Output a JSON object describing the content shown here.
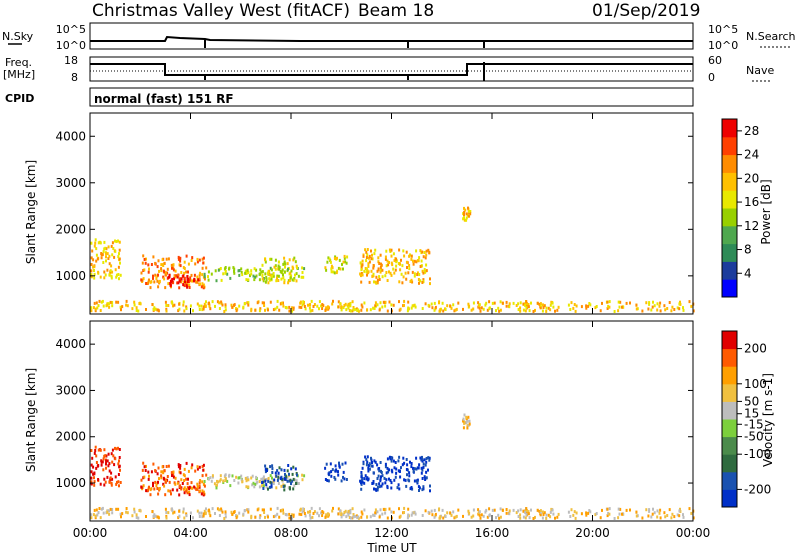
{
  "header": {
    "title": "Christmas Valley West (fitACF)",
    "beam": "Beam 18",
    "date": "01/Sep/2019"
  },
  "top_panels": {
    "nsky_label": "N.Sky",
    "nsky_ticks": [
      "10^5",
      "10^0"
    ],
    "nsearch_label": "N.Search",
    "nsearch_ticks": [
      "10^5",
      "10^0"
    ],
    "freq_label_line1": "Freq.",
    "freq_label_line2": "[MHz]",
    "freq_ticks": [
      "18",
      "8"
    ],
    "nave_label": "Nave",
    "nave_ticks": [
      "60",
      "0"
    ],
    "cpid_label": "CPID",
    "cpid_value": "normal (fast) 151 RF"
  },
  "colors": {
    "power": [
      "#0000ff",
      "#1c3c9c",
      "#2e8b57",
      "#4fa84f",
      "#98d000",
      "#e8e800",
      "#ffc000",
      "#ff8c00",
      "#ff4000",
      "#ee0000"
    ],
    "velocity": [
      "#0030c8",
      "#1a52b0",
      "#2f6b3f",
      "#4b8b4b",
      "#7ccf3c",
      "#bdbdbd",
      "#f0c040",
      "#ff9f00",
      "#ff5a00",
      "#e00000"
    ]
  },
  "chart_data": [
    {
      "type": "heatmap",
      "name": "power",
      "xlabel": "",
      "ylabel": "Slant Range [km]",
      "x_ticks": [
        "00:00",
        "04:00",
        "08:00",
        "12:00",
        "16:00",
        "20:00",
        "00:00"
      ],
      "y_ticks": [
        1000,
        2000,
        3000,
        4000
      ],
      "xlim_hours": [
        0,
        24
      ],
      "ylim_km": [
        180,
        4500
      ],
      "colorbar": {
        "label": "Power [dB]",
        "ticks": [
          4,
          8,
          12,
          16,
          20,
          24,
          28
        ],
        "range": [
          0,
          30
        ]
      },
      "echo_regions": [
        {
          "t0": 0.0,
          "t1": 24.0,
          "r0": 200,
          "r1": 420,
          "level": 6
        },
        {
          "t0": 0.0,
          "t1": 1.2,
          "r0": 900,
          "r1": 1750,
          "level": 6
        },
        {
          "t0": 2.0,
          "t1": 4.6,
          "r0": 700,
          "r1": 1400,
          "level": 7
        },
        {
          "t0": 3.0,
          "t1": 4.4,
          "r0": 700,
          "r1": 1000,
          "level": 9
        },
        {
          "t0": 4.5,
          "t1": 8.5,
          "r0": 850,
          "r1": 1150,
          "level": 4
        },
        {
          "t0": 6.8,
          "t1": 8.2,
          "r0": 800,
          "r1": 1350,
          "level": 5
        },
        {
          "t0": 9.3,
          "t1": 10.2,
          "r0": 1000,
          "r1": 1400,
          "level": 5
        },
        {
          "t0": 10.7,
          "t1": 13.5,
          "r0": 800,
          "r1": 1550,
          "level": 6
        },
        {
          "t0": 14.8,
          "t1": 15.1,
          "r0": 2150,
          "r1": 2450,
          "level": 6
        }
      ]
    },
    {
      "type": "heatmap",
      "name": "velocity",
      "xlabel": "Time UT",
      "ylabel": "Slant Range [km]",
      "x_ticks": [
        "00:00",
        "04:00",
        "08:00",
        "12:00",
        "16:00",
        "20:00",
        "00:00"
      ],
      "y_ticks": [
        1000,
        2000,
        3000,
        4000
      ],
      "xlim_hours": [
        0,
        24
      ],
      "ylim_km": [
        180,
        4500
      ],
      "colorbar": {
        "label": "Velocity [m s-1]",
        "ticks": [
          200,
          100,
          50,
          15,
          -15,
          -50,
          -100,
          -200
        ],
        "range": [
          -250,
          250
        ]
      },
      "echo_regions": [
        {
          "t0": 0.0,
          "t1": 24.0,
          "r0": 200,
          "r1": 420,
          "level": 6
        },
        {
          "t0": 0.0,
          "t1": 1.2,
          "r0": 900,
          "r1": 1750,
          "level": 9
        },
        {
          "t0": 2.0,
          "t1": 4.6,
          "r0": 700,
          "r1": 1400,
          "level": 8
        },
        {
          "t0": 4.5,
          "t1": 8.5,
          "r0": 850,
          "r1": 1150,
          "level": 5
        },
        {
          "t0": 6.8,
          "t1": 8.2,
          "r0": 800,
          "r1": 1350,
          "level": 1
        },
        {
          "t0": 9.3,
          "t1": 10.2,
          "r0": 1000,
          "r1": 1400,
          "level": 0
        },
        {
          "t0": 10.7,
          "t1": 13.5,
          "r0": 800,
          "r1": 1550,
          "level": 0
        },
        {
          "t0": 14.8,
          "t1": 15.1,
          "r0": 2150,
          "r1": 2450,
          "level": 6
        }
      ]
    }
  ]
}
